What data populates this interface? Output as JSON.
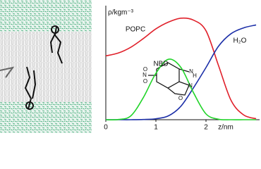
{
  "chart_data": {
    "type": "line",
    "xlabel": "z/nm",
    "ylabel": "ρ/kgm⁻³",
    "x": [
      0,
      0.25,
      0.5,
      0.75,
      1,
      1.25,
      1.5,
      1.75,
      2,
      2.25,
      2.5,
      2.75,
      3
    ],
    "series": [
      {
        "name": "POPC",
        "color": "#e0202a",
        "values": [
          660,
          690,
          750,
          840,
          940,
          1010,
          1050,
          1030,
          920,
          560,
          200,
          50,
          10
        ]
      },
      {
        "name": "H₂O",
        "color": "#1c2fa8",
        "values": [
          0,
          0,
          0,
          2,
          10,
          40,
          140,
          330,
          540,
          760,
          890,
          950,
          980
        ]
      },
      {
        "name": "NBD",
        "color": "#22d42a",
        "values": [
          0,
          2,
          40,
          230,
          480,
          625,
          540,
          280,
          60,
          5,
          0,
          0,
          0
        ]
      }
    ],
    "xlim": [
      0,
      3.07
    ],
    "ylim": [
      0,
      1180
    ],
    "xticks": [
      0,
      1,
      2
    ],
    "structure_atoms": [
      "O",
      "N",
      "O",
      "N",
      "O",
      "N",
      "H"
    ]
  }
}
